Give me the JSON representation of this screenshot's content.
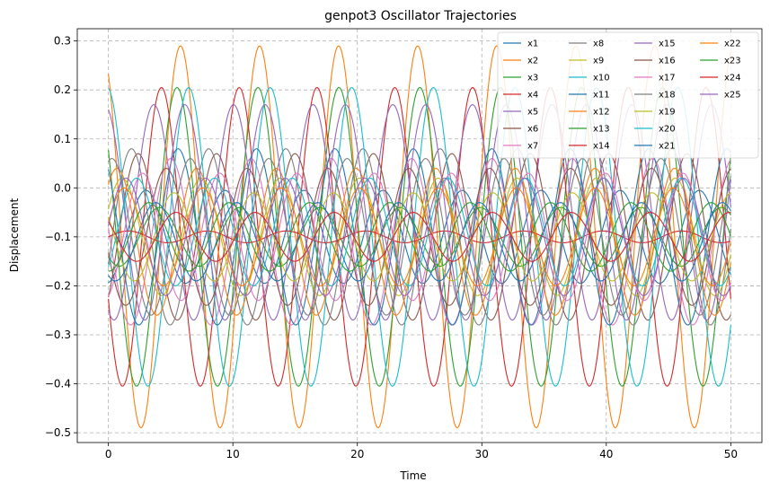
{
  "chart_data": {
    "type": "line",
    "title": "genpot3 Oscillator Trajectories",
    "xlabel": "Time",
    "ylabel": "Displacement",
    "xlim": [
      -2.5,
      52.5
    ],
    "ylim": [
      -0.52,
      0.325
    ],
    "x_ticks": [
      0,
      10,
      20,
      30,
      40,
      50
    ],
    "y_ticks": [
      -0.5,
      -0.4,
      -0.3,
      -0.2,
      -0.1,
      0.0,
      0.1,
      0.2,
      0.3
    ],
    "x_tick_labels": [
      "0",
      "10",
      "20",
      "30",
      "40",
      "50"
    ],
    "y_tick_labels": [
      "−0.5",
      "−0.4",
      "−0.3",
      "−0.2",
      "−0.1",
      "0.0",
      "0.1",
      "0.2",
      "0.3"
    ],
    "grid": true,
    "legend_placement": "top-right",
    "legend_columns": 4,
    "x_range": [
      0,
      50
    ],
    "series": [
      {
        "name": "x1",
        "color": "#1f77b4",
        "center": -0.1,
        "amplitude": 0.095,
        "period": 6.35,
        "phase": 3.3
      },
      {
        "name": "x2",
        "color": "#ff7f0e",
        "center": -0.1,
        "amplitude": 0.39,
        "period": 6.35,
        "phase": 0.55
      },
      {
        "name": "x3",
        "color": "#2ca02c",
        "center": -0.1,
        "amplitude": 0.305,
        "period": 6.5,
        "phase": 0.95
      },
      {
        "name": "x4",
        "color": "#d62728",
        "center": -0.1,
        "amplitude": 0.305,
        "period": 6.25,
        "phase": 2.0
      },
      {
        "name": "x5",
        "color": "#9467bd",
        "center": -0.05,
        "amplitude": 0.22,
        "period": 6.4,
        "phase": 2.7
      },
      {
        "name": "x6",
        "color": "#8c564b",
        "center": -0.1,
        "amplitude": 0.17,
        "period": 6.3,
        "phase": 3.9
      },
      {
        "name": "x7",
        "color": "#e377c2",
        "center": -0.11,
        "amplitude": 0.17,
        "period": 6.45,
        "phase": 1.4
      },
      {
        "name": "x8",
        "color": "#7f7f7f",
        "center": -0.1,
        "amplitude": 0.18,
        "period": 6.2,
        "phase": 4.4
      },
      {
        "name": "x9",
        "color": "#bcbd22",
        "center": -0.1,
        "amplitude": 0.12,
        "period": 6.35,
        "phase": 5.2
      },
      {
        "name": "x10",
        "color": "#17becf",
        "center": -0.1,
        "amplitude": 0.305,
        "period": 6.55,
        "phase": 0.1
      },
      {
        "name": "x11",
        "color": "#1f77b4",
        "center": -0.1,
        "amplitude": 0.18,
        "period": 6.3,
        "phase": 0.7
      },
      {
        "name": "x12",
        "color": "#ff7f0e",
        "center": -0.11,
        "amplitude": 0.15,
        "period": 6.4,
        "phase": 5.6
      },
      {
        "name": "x13",
        "color": "#2ca02c",
        "center": -0.1,
        "amplitude": 0.06,
        "period": 6.45,
        "phase": 2.3
      },
      {
        "name": "x14",
        "color": "#d62728",
        "center": -0.1,
        "amplitude": 0.012,
        "period": 6.35,
        "phase": 4.7
      },
      {
        "name": "x15",
        "color": "#9467bd",
        "center": -0.05,
        "amplitude": 0.22,
        "period": 6.45,
        "phase": 0.3
      },
      {
        "name": "x16",
        "color": "#8c564b",
        "center": -0.1,
        "amplitude": 0.14,
        "period": 6.5,
        "phase": 1.8
      },
      {
        "name": "x17",
        "color": "#e377c2",
        "center": -0.1,
        "amplitude": 0.13,
        "period": 6.2,
        "phase": 3.5
      },
      {
        "name": "x18",
        "color": "#7f7f7f",
        "center": -0.1,
        "amplitude": 0.16,
        "period": 6.3,
        "phase": 6.0
      },
      {
        "name": "x19",
        "color": "#bcbd22",
        "center": -0.1,
        "amplitude": 0.09,
        "period": 6.4,
        "phase": 1.1
      },
      {
        "name": "x20",
        "color": "#17becf",
        "center": -0.09,
        "amplitude": 0.11,
        "period": 6.25,
        "phase": 4.0
      },
      {
        "name": "x21",
        "color": "#1f77b4",
        "center": -0.11,
        "amplitude": 0.08,
        "period": 6.5,
        "phase": 2.6
      },
      {
        "name": "x22",
        "color": "#ff7f0e",
        "center": -0.1,
        "amplitude": 0.1,
        "period": 6.3,
        "phase": 5.0
      },
      {
        "name": "x23",
        "color": "#2ca02c",
        "center": -0.1,
        "amplitude": 0.07,
        "period": 6.45,
        "phase": 3.1
      },
      {
        "name": "x24",
        "color": "#d62728",
        "center": -0.1,
        "amplitude": 0.05,
        "period": 6.35,
        "phase": 0.9
      },
      {
        "name": "x25",
        "color": "#9467bd",
        "center": -0.1,
        "amplitude": 0.12,
        "period": 6.4,
        "phase": 4.9
      }
    ]
  }
}
